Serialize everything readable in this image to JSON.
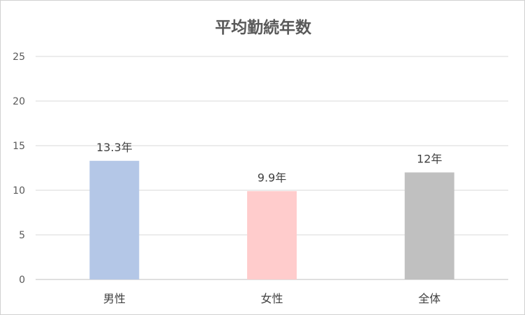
{
  "chart_data": {
    "type": "bar",
    "title": "平均勤続年数",
    "xlabel": "",
    "ylabel": "",
    "categories": [
      "男性",
      "女性",
      "全体"
    ],
    "values": [
      13.3,
      9.9,
      12
    ],
    "data_labels": [
      "13.3年",
      "9.9年",
      "12年"
    ],
    "bar_colors": [
      "#b4c7e7",
      "#ffcccc",
      "#c0c0c0"
    ],
    "yticks": [
      "0",
      "5",
      "10",
      "15",
      "20",
      "25"
    ],
    "ylim": [
      0,
      25
    ],
    "grid": true,
    "legend": "none"
  }
}
